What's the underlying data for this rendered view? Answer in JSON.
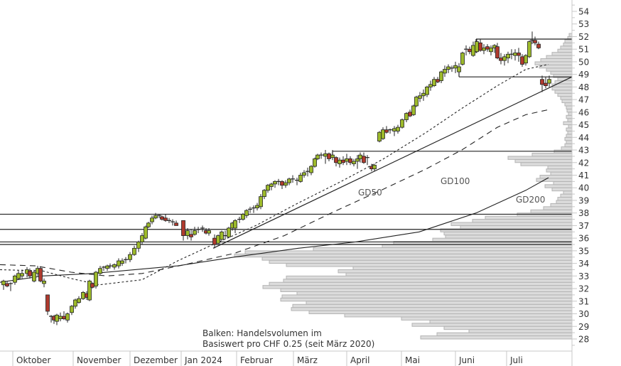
{
  "chart_data": {
    "type": "candlestick",
    "title": "",
    "xlabel": "",
    "ylabel": "",
    "ylim": [
      27,
      55
    ],
    "y_ticks": [
      28,
      29,
      30,
      31,
      32,
      33,
      34,
      35,
      36,
      37,
      38,
      39,
      40,
      41,
      42,
      43,
      44,
      45,
      46,
      47,
      48,
      49,
      50,
      51,
      52,
      53,
      54
    ],
    "x_month_labels": [
      "Oktober",
      "November",
      "Dezember",
      "Jan 2024",
      "Februar",
      "März",
      "April",
      "Mai",
      "Juni",
      "Juli"
    ],
    "note_line1": "Balken: Handelsvolumen im",
    "note_line2": "Basiswert pro CHF 0.25 (seit März 2020)",
    "moving_averages": [
      {
        "name": "GD50",
        "style": "dotted",
        "label_price": 40.3
      },
      {
        "name": "GD100",
        "style": "dashed",
        "label_price": 40.5
      },
      {
        "name": "GD200",
        "style": "solid",
        "label_price": 39.3
      }
    ],
    "horizontal_levels": [
      51.8,
      48.8,
      42.9,
      37.9,
      36.7,
      35.7,
      35.5
    ],
    "trendline": {
      "from": {
        "month_index": 3.6,
        "price": 35.2
      },
      "to": {
        "month_index": 9.9,
        "price": 48.8
      }
    },
    "series_close_approx": [
      {
        "month": "Oktober",
        "open": 33.0,
        "close": 33.2
      },
      {
        "month": "Oktober (late)",
        "low": 29.2,
        "close": 29.8
      },
      {
        "month": "November",
        "open": 31.0,
        "close": 33.8
      },
      {
        "month": "Dezember",
        "open": 34.0,
        "close": 37.8
      },
      {
        "month": "Jan 2024",
        "open": 37.2,
        "close": 36.5
      },
      {
        "month": "Februar",
        "open": 36.5,
        "close": 40.2
      },
      {
        "month": "März",
        "open": 40.2,
        "close": 42.3
      },
      {
        "month": "April",
        "open": 42.3,
        "close": 41.5
      },
      {
        "month": "Mai",
        "open": 43.8,
        "close": 49.5
      },
      {
        "month": "Juni",
        "open": 49.5,
        "close": 50.0
      },
      {
        "month": "Juli",
        "open": 50.0,
        "close": 48.5
      }
    ],
    "volume_profile": {
      "description": "Horizontal bars: trading volume per CHF 0.25 price bucket since March 2020",
      "color": "#dcdcdc"
    },
    "colors": {
      "up": "#9dba2b",
      "down": "#b03a2e",
      "line": "#222222",
      "volume": "#dcdcdc",
      "volume_border": "#b4b4b4",
      "axis": "#c8c8c8"
    }
  }
}
